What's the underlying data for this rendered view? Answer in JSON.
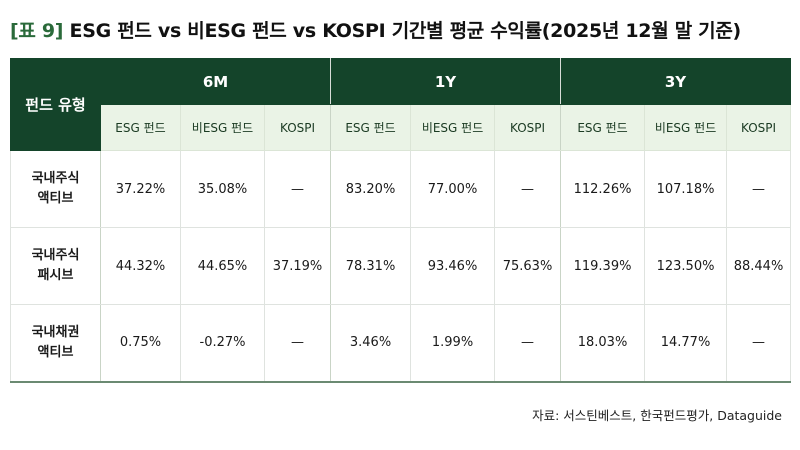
{
  "title_tag": "[표 9]",
  "title": "ESG 펀드 vs 비ESG 펀드 vs KOSPI 기간별 평균 수익률(2025년 12월 말 기준)",
  "table": {
    "type_header": "펀드 유형",
    "periods": [
      "6M",
      "1Y",
      "3Y"
    ],
    "subheaders": [
      "ESG 펀드",
      "비ESG 펀드",
      "KOSPI"
    ],
    "rows": [
      {
        "label_line1": "국내주식",
        "label_line2": "액티브",
        "values": [
          "37.22%",
          "35.08%",
          "—",
          "83.20%",
          "77.00%",
          "—",
          "112.26%",
          "107.18%",
          "—"
        ]
      },
      {
        "label_line1": "국내주식",
        "label_line2": "패시브",
        "values": [
          "44.32%",
          "44.65%",
          "37.19%",
          "78.31%",
          "93.46%",
          "75.63%",
          "119.39%",
          "123.50%",
          "88.44%"
        ]
      },
      {
        "label_line1": "국내채권",
        "label_line2": "액티브",
        "values": [
          "0.75%",
          "-0.27%",
          "—",
          "3.46%",
          "1.99%",
          "—",
          "18.03%",
          "14.77%",
          "—"
        ]
      }
    ]
  },
  "source": "자료: 서스틴베스트, 한국펀드평가, Dataguide",
  "colors": {
    "header_dark_green": "#14442a",
    "subheader_light_green": "#eaf3e6",
    "title_tag_green": "#2a6a3a"
  }
}
